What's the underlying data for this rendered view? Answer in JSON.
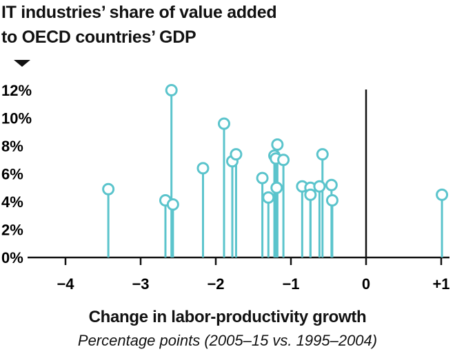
{
  "chart_data": {
    "type": "scatter",
    "style": "lollipop",
    "title": "IT industries’ share of value added to OECD countries’ GDP",
    "title_lines": [
      "IT industries’ share of value added",
      "to OECD countries’ GDP"
    ],
    "xlabel": "Change in labor-productivity growth",
    "xsublabel": "Percentage points (2005–15 vs. 1995–2004)",
    "ylabel": "",
    "xlim": [
      -4.1,
      1.1
    ],
    "ylim": [
      0,
      12
    ],
    "xticks": [
      -4,
      -3,
      -2,
      -1,
      0,
      1
    ],
    "xtick_labels": [
      "−4",
      "−3",
      "−2",
      "−1",
      "0",
      "+1"
    ],
    "yticks": [
      0,
      2,
      4,
      6,
      8,
      10,
      12
    ],
    "ytick_labels": [
      "0%",
      "2%",
      "4%",
      "6%",
      "8%",
      "10%",
      "12%"
    ],
    "reference_line_x": 0,
    "grid": false,
    "color": "#5bc4cc",
    "points": [
      {
        "x": -3.43,
        "y": 4.9
      },
      {
        "x": -2.67,
        "y": 4.1
      },
      {
        "x": -2.59,
        "y": 12.0
      },
      {
        "x": -2.57,
        "y": 3.8
      },
      {
        "x": -2.17,
        "y": 6.4
      },
      {
        "x": -1.89,
        "y": 9.6
      },
      {
        "x": -1.78,
        "y": 6.9
      },
      {
        "x": -1.73,
        "y": 7.4
      },
      {
        "x": -1.38,
        "y": 5.7
      },
      {
        "x": -1.3,
        "y": 4.3
      },
      {
        "x": -1.22,
        "y": 7.3
      },
      {
        "x": -1.2,
        "y": 7.1
      },
      {
        "x": -1.19,
        "y": 5.0
      },
      {
        "x": -1.18,
        "y": 8.1
      },
      {
        "x": -1.1,
        "y": 7.0
      },
      {
        "x": -0.85,
        "y": 5.1
      },
      {
        "x": -0.74,
        "y": 5.0
      },
      {
        "x": -0.74,
        "y": 4.5
      },
      {
        "x": -0.62,
        "y": 5.1
      },
      {
        "x": -0.58,
        "y": 7.4
      },
      {
        "x": -0.46,
        "y": 5.2
      },
      {
        "x": -0.45,
        "y": 4.1
      },
      {
        "x": 1.01,
        "y": 4.5
      }
    ]
  }
}
